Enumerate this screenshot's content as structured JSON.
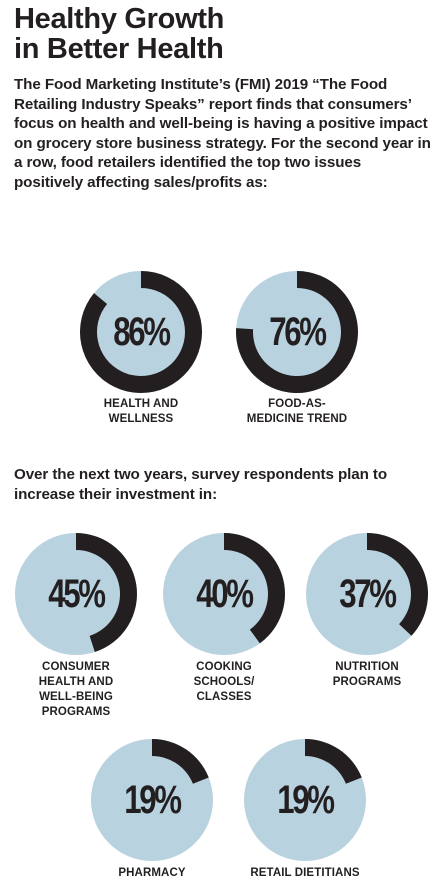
{
  "title": {
    "line1": "Healthy Growth",
    "line2": "in Better Health"
  },
  "intro": "The Food Marketing Institute’s (FMI) 2019 “The Food Retailing Industry Speaks” report finds that consumers’ focus on health and well-being is having a positive impact on grocery store business strategy. For the second year in a row, food retailers identified the top two issues positively affecting sales/profits as:",
  "intro2": "Over the next two years, survey respondents plan to increase their investment in:",
  "colors": {
    "ring_fill": "#231f20",
    "ring_bg": "#b9d2df",
    "text": "#231f20"
  },
  "top_issues": [
    {
      "value": 86,
      "value_label": "86%",
      "label": "HEALTH AND\nWELLNESS"
    },
    {
      "value": 76,
      "value_label": "76%",
      "label": "FOOD-AS-\nMEDICINE TREND"
    }
  ],
  "investments": [
    {
      "value": 45,
      "value_label": "45%",
      "label": "CONSUMER\nHEALTH AND\nWELL-BEING\nPROGRAMS"
    },
    {
      "value": 40,
      "value_label": "40%",
      "label": "COOKING\nSCHOOLS/\nCLASSES"
    },
    {
      "value": 37,
      "value_label": "37%",
      "label": "NUTRITION\nPROGRAMS"
    },
    {
      "value": 19,
      "value_label": "19%",
      "label": "PHARMACY"
    },
    {
      "value": 19,
      "value_label": "19%",
      "label": "RETAIL DIETITIANS"
    }
  ]
}
